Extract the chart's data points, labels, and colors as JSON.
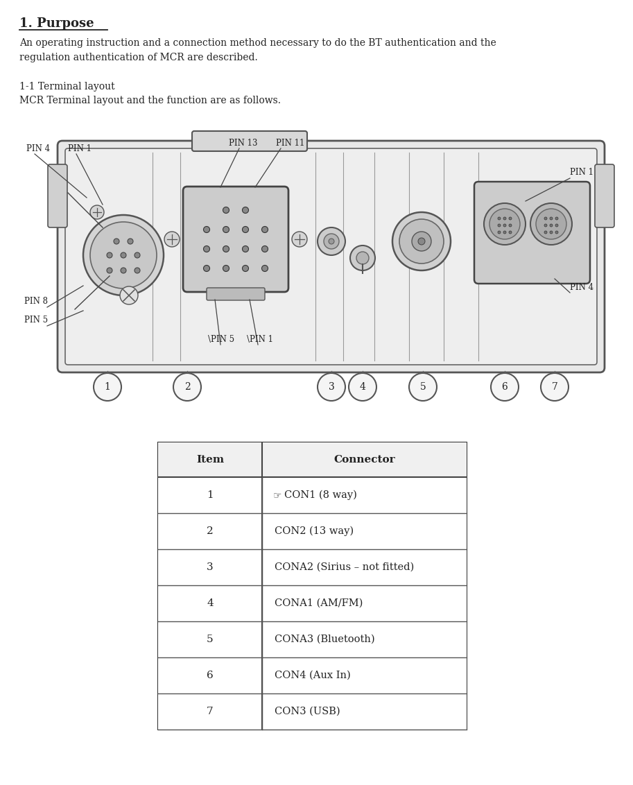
{
  "title": "1. Purpose",
  "body_text_line1": "An operating instruction and a connection method necessary to do the BT authentication and the",
  "body_text_line2": "regulation authentication of MCR are described.",
  "subtitle1": "1-1 Terminal layout",
  "subtitle2": "MCR Terminal layout and the function are as follows.",
  "table_headers": [
    "Item",
    "Connector"
  ],
  "table_rows": [
    [
      "1",
      "CON1 (8 way)"
    ],
    [
      "2",
      "CON2 (13 way)"
    ],
    [
      "3",
      "CONA2 (Sirius – not fitted)"
    ],
    [
      "4",
      "CONA1 (AM/FM)"
    ],
    [
      "5",
      "CONA3 (Bluetooth)"
    ],
    [
      "6",
      "CON4 (Aux In)"
    ],
    [
      "7",
      "CON3 (USB)"
    ]
  ],
  "connector_numbers": [
    "1",
    "2",
    "3",
    "4",
    "5",
    "6",
    "7"
  ],
  "bg_color": "#ffffff",
  "text_color": "#222222",
  "line_color": "#444444"
}
